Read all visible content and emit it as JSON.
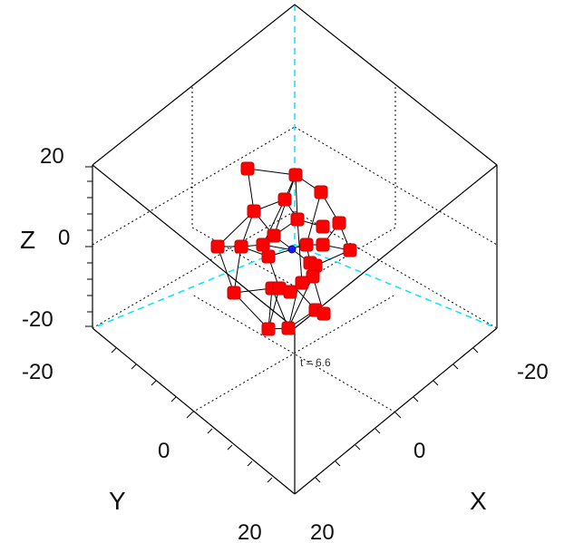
{
  "chart_data": {
    "type": "scatter",
    "subtype": "3d-network",
    "title": "",
    "xlabel": "X",
    "ylabel": "Y",
    "zlabel": "Z",
    "xlim": [
      -20,
      20
    ],
    "ylim": [
      -20,
      20
    ],
    "zlim": [
      -20,
      20
    ],
    "x_ticks": [
      "-20",
      "0",
      "20"
    ],
    "y_ticks": [
      "-20",
      "0",
      "20"
    ],
    "z_ticks": [
      "20",
      "0",
      "-20"
    ],
    "time_label": "t = 6.6",
    "marker_color": "#ff0000",
    "edge_color": "#000000",
    "center_color": "#1a1aff",
    "axis_line_color": "#00e5ff",
    "grid": true
  }
}
